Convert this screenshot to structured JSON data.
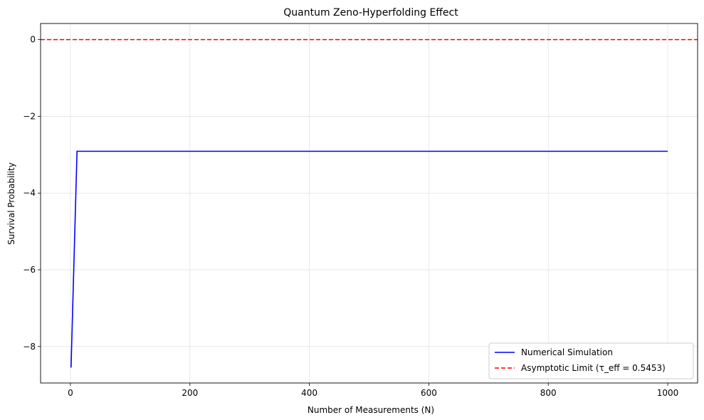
{
  "chart_data": {
    "type": "line",
    "title": "Quantum Zeno-Hyperfolding Effect",
    "xlabel": "Number of Measurements (N)",
    "ylabel": "Survival Probability",
    "xlim": [
      -50,
      1050
    ],
    "ylim": [
      -8.95,
      0.42
    ],
    "xticks": [
      0,
      200,
      400,
      600,
      800,
      1000
    ],
    "yticks": [
      -8,
      -6,
      -4,
      -2,
      0
    ],
    "grid": true,
    "legend_position": "bottom-right",
    "series": [
      {
        "name": "Numerical Simulation",
        "color": "#0000ff",
        "style": "solid",
        "x": [
          1,
          11,
          1000
        ],
        "y": [
          -8.55,
          -2.91,
          -2.91
        ]
      },
      {
        "name": "Asymptotic Limit (τ_eff = 0.5453)",
        "color": "#ff0000",
        "style": "dashed",
        "hline": 0
      }
    ]
  }
}
